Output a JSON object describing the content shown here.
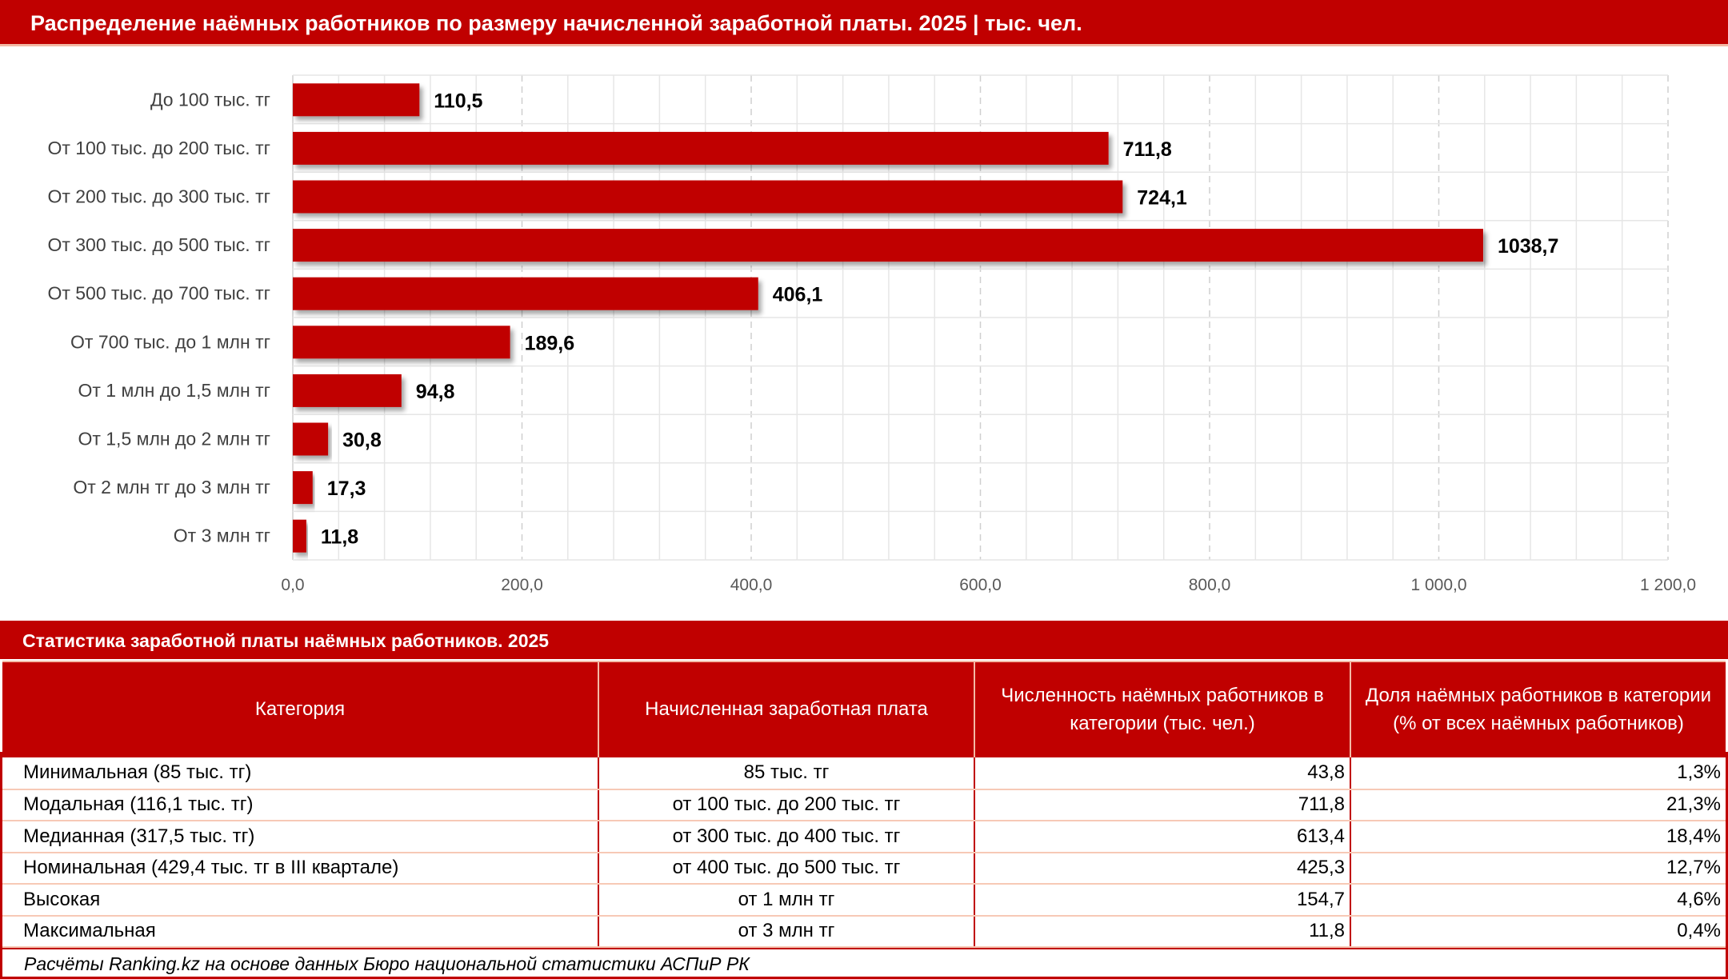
{
  "header": {
    "title": "Распределение наёмных работников по размеру начисленной заработной платы. 2025 | тыс. чел."
  },
  "colors": {
    "accent": "#C00000",
    "row_line": "#F7C9B6"
  },
  "chart_data": {
    "type": "bar",
    "orientation": "horizontal",
    "categories": [
      "До 100 тыс. тг",
      "От 100 тыс. до 200 тыс. тг",
      "От 200 тыс. до 300 тыс. тг",
      "От 300 тыс. до 500 тыс. тг",
      "От 500 тыс. до 700 тыс. тг",
      "От 700 тыс. до 1 млн тг",
      "От 1 млн до 1,5 млн тг",
      "От 1,5 млн до 2 млн тг",
      "От 2 млн тг до 3 млн тг",
      "От 3 млн тг"
    ],
    "values": [
      110.5,
      711.8,
      724.1,
      1038.7,
      406.1,
      189.6,
      94.8,
      30.8,
      17.3,
      11.8
    ],
    "value_labels": [
      "110,5",
      "711,8",
      "724,1",
      "1038,7",
      "406,1",
      "189,6",
      "94,8",
      "30,8",
      "17,3",
      "11,8"
    ],
    "xlim": [
      0,
      1200
    ],
    "ticks": [
      0,
      200,
      400,
      600,
      800,
      1000,
      1200
    ],
    "tick_labels": [
      "0,0",
      "200,0",
      "400,0",
      "600,0",
      "800,0",
      "1 000,0",
      "1 200,0"
    ],
    "grid": true,
    "bar_color": "#C00000"
  },
  "table": {
    "title": "Статистика заработной платы наёмных работников. 2025",
    "headers": [
      "Категория",
      "Начисленная заработная плата",
      "Численность наёмных работников в категории (тыс. чел.)",
      "Доля наёмных работников в категории (% от всех наёмных работников)"
    ],
    "rows": [
      [
        "Минимальная (85 тыс. тг)",
        "85 тыс. тг",
        "43,8",
        "1,3%"
      ],
      [
        "Модальная (116,1 тыс. тг)",
        "от 100 тыс. до 200 тыс. тг",
        "711,8",
        "21,3%"
      ],
      [
        "Медианная (317,5 тыс. тг)",
        "от 300 тыс. до 400 тыс. тг",
        "613,4",
        "18,4%"
      ],
      [
        "Номинальная (429,4 тыс. тг в III квартале)",
        "от 400 тыс. до 500 тыс. тг",
        "425,3",
        "12,7%"
      ],
      [
        "Высокая",
        "от 1 млн тг",
        "154,7",
        "4,6%"
      ],
      [
        "Максимальная",
        "от 3 млн тг",
        "11,8",
        "0,4%"
      ]
    ]
  },
  "footer": {
    "source": "Расчёты Ranking.kz на основе данных Бюро национальной статистики АСПиР РК"
  }
}
